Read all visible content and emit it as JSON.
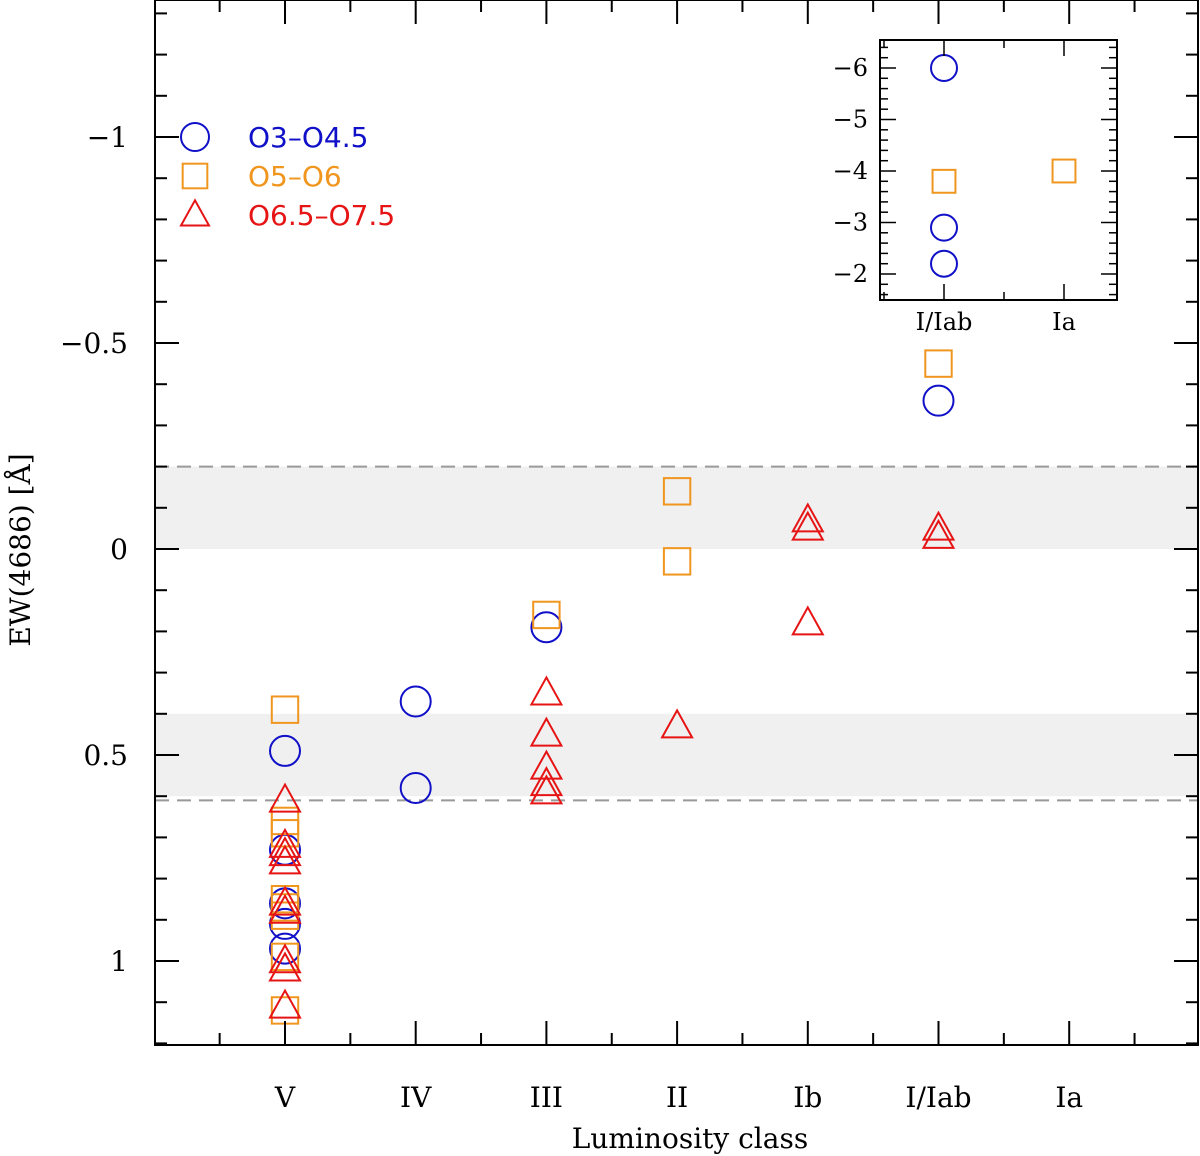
{
  "chart_data": {
    "type": "scatter",
    "xlabel": "Luminosity class",
    "ylabel": "EW(4686) [Å]",
    "categories": [
      "V",
      "IV",
      "III",
      "II",
      "Ib",
      "I/Iab",
      "Ia"
    ],
    "ylim": [
      1.2,
      -1.3
    ],
    "yticks": [
      1,
      0.5,
      0,
      -0.5,
      -1
    ],
    "ytick_labels": [
      "1",
      "0.5",
      "0",
      "−0.5",
      "−1"
    ],
    "shaded_bands": [
      {
        "from": 0.0,
        "to": -0.2
      },
      {
        "from": 0.4,
        "to": 0.6
      }
    ],
    "dashed_lines": [
      -0.2,
      0.61
    ],
    "legend": [
      {
        "name": "O3–O4.5",
        "marker": "circle",
        "color": "#1010c8"
      },
      {
        "name": "O5–O6",
        "marker": "square",
        "color": "#f0961e"
      },
      {
        "name": "O6.5–O7.5",
        "marker": "triangle",
        "color": "#e61414"
      }
    ],
    "series": [
      {
        "name": "O3–O4.5",
        "marker": "circle",
        "color": "#1010c8",
        "points": [
          {
            "x": "V",
            "y": 0.49
          },
          {
            "x": "V",
            "y": 0.73
          },
          {
            "x": "V",
            "y": 0.86
          },
          {
            "x": "V",
            "y": 0.91
          },
          {
            "x": "V",
            "y": 0.97
          },
          {
            "x": "IV",
            "y": 0.37
          },
          {
            "x": "IV",
            "y": 0.58
          },
          {
            "x": "III",
            "y": 0.19
          },
          {
            "x": "I/Iab",
            "y": -0.36
          }
        ]
      },
      {
        "name": "O5–O6",
        "marker": "square",
        "color": "#f0961e",
        "points": [
          {
            "x": "V",
            "y": 0.39
          },
          {
            "x": "V",
            "y": 0.66
          },
          {
            "x": "V",
            "y": 0.69
          },
          {
            "x": "V",
            "y": 0.85
          },
          {
            "x": "V",
            "y": 0.87
          },
          {
            "x": "V",
            "y": 0.89
          },
          {
            "x": "V",
            "y": 0.99
          },
          {
            "x": "V",
            "y": 1.12
          },
          {
            "x": "III",
            "y": 0.16
          },
          {
            "x": "II",
            "y": -0.14
          },
          {
            "x": "II",
            "y": 0.03
          },
          {
            "x": "I/Iab",
            "y": -0.45
          }
        ]
      },
      {
        "name": "O6.5–O7.5",
        "marker": "triangle",
        "color": "#e61414",
        "points": [
          {
            "x": "V",
            "y": 0.61
          },
          {
            "x": "V",
            "y": 0.72
          },
          {
            "x": "V",
            "y": 0.74
          },
          {
            "x": "V",
            "y": 0.76
          },
          {
            "x": "V",
            "y": 0.86
          },
          {
            "x": "V",
            "y": 0.88
          },
          {
            "x": "V",
            "y": 1.0
          },
          {
            "x": "V",
            "y": 1.02
          },
          {
            "x": "V",
            "y": 1.11
          },
          {
            "x": "III",
            "y": 0.35
          },
          {
            "x": "III",
            "y": 0.45
          },
          {
            "x": "III",
            "y": 0.53
          },
          {
            "x": "III",
            "y": 0.57
          },
          {
            "x": "III",
            "y": 0.59
          },
          {
            "x": "II",
            "y": 0.43
          },
          {
            "x": "Ib",
            "y": -0.07
          },
          {
            "x": "Ib",
            "y": -0.05
          },
          {
            "x": "Ib",
            "y": 0.18
          },
          {
            "x": "I/Iab",
            "y": -0.05
          },
          {
            "x": "I/Iab",
            "y": -0.03
          }
        ]
      }
    ],
    "inset": {
      "categories": [
        "I/Iab",
        "Ia"
      ],
      "ylim": [
        -1.5,
        -6.5
      ],
      "yticks": [
        -2,
        -3,
        -4,
        -5,
        -6
      ],
      "ytick_labels": [
        "−2",
        "−3",
        "−4",
        "−5",
        "−6"
      ],
      "series": [
        {
          "name": "O3–O4.5",
          "marker": "circle",
          "color": "#1010c8",
          "points": [
            {
              "x": "I/Iab",
              "y": -6.0
            },
            {
              "x": "I/Iab",
              "y": -2.9
            },
            {
              "x": "I/Iab",
              "y": -2.2
            }
          ]
        },
        {
          "name": "O5–O6",
          "marker": "square",
          "color": "#f0961e",
          "points": [
            {
              "x": "I/Iab",
              "y": -3.8
            },
            {
              "x": "Ia",
              "y": -4.0
            }
          ]
        }
      ]
    }
  }
}
